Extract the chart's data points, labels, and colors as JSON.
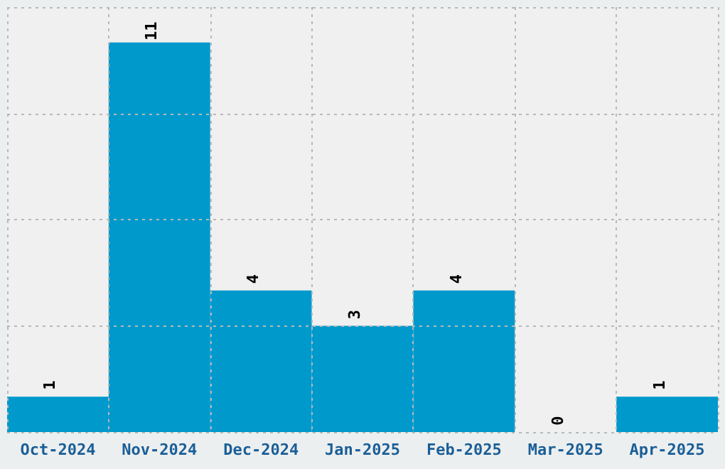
{
  "chart_data": {
    "type": "bar",
    "categories": [
      "Oct-2024",
      "Nov-2024",
      "Dec-2024",
      "Jan-2025",
      "Feb-2025",
      "Mar-2025",
      "Apr-2025"
    ],
    "values": [
      1,
      11,
      4,
      3,
      4,
      0,
      1
    ],
    "color": "#0099cc",
    "ylim": [
      0,
      12
    ],
    "yticks": [
      {
        "value": 0,
        "label": null
      },
      {
        "value": 3,
        "label": null
      },
      {
        "value": 6,
        "label": null
      },
      {
        "value": 9,
        "label": null
      },
      {
        "value": 12,
        "label": null
      }
    ],
    "tick_labels": "x",
    "grid": true,
    "data_labels": true
  }
}
